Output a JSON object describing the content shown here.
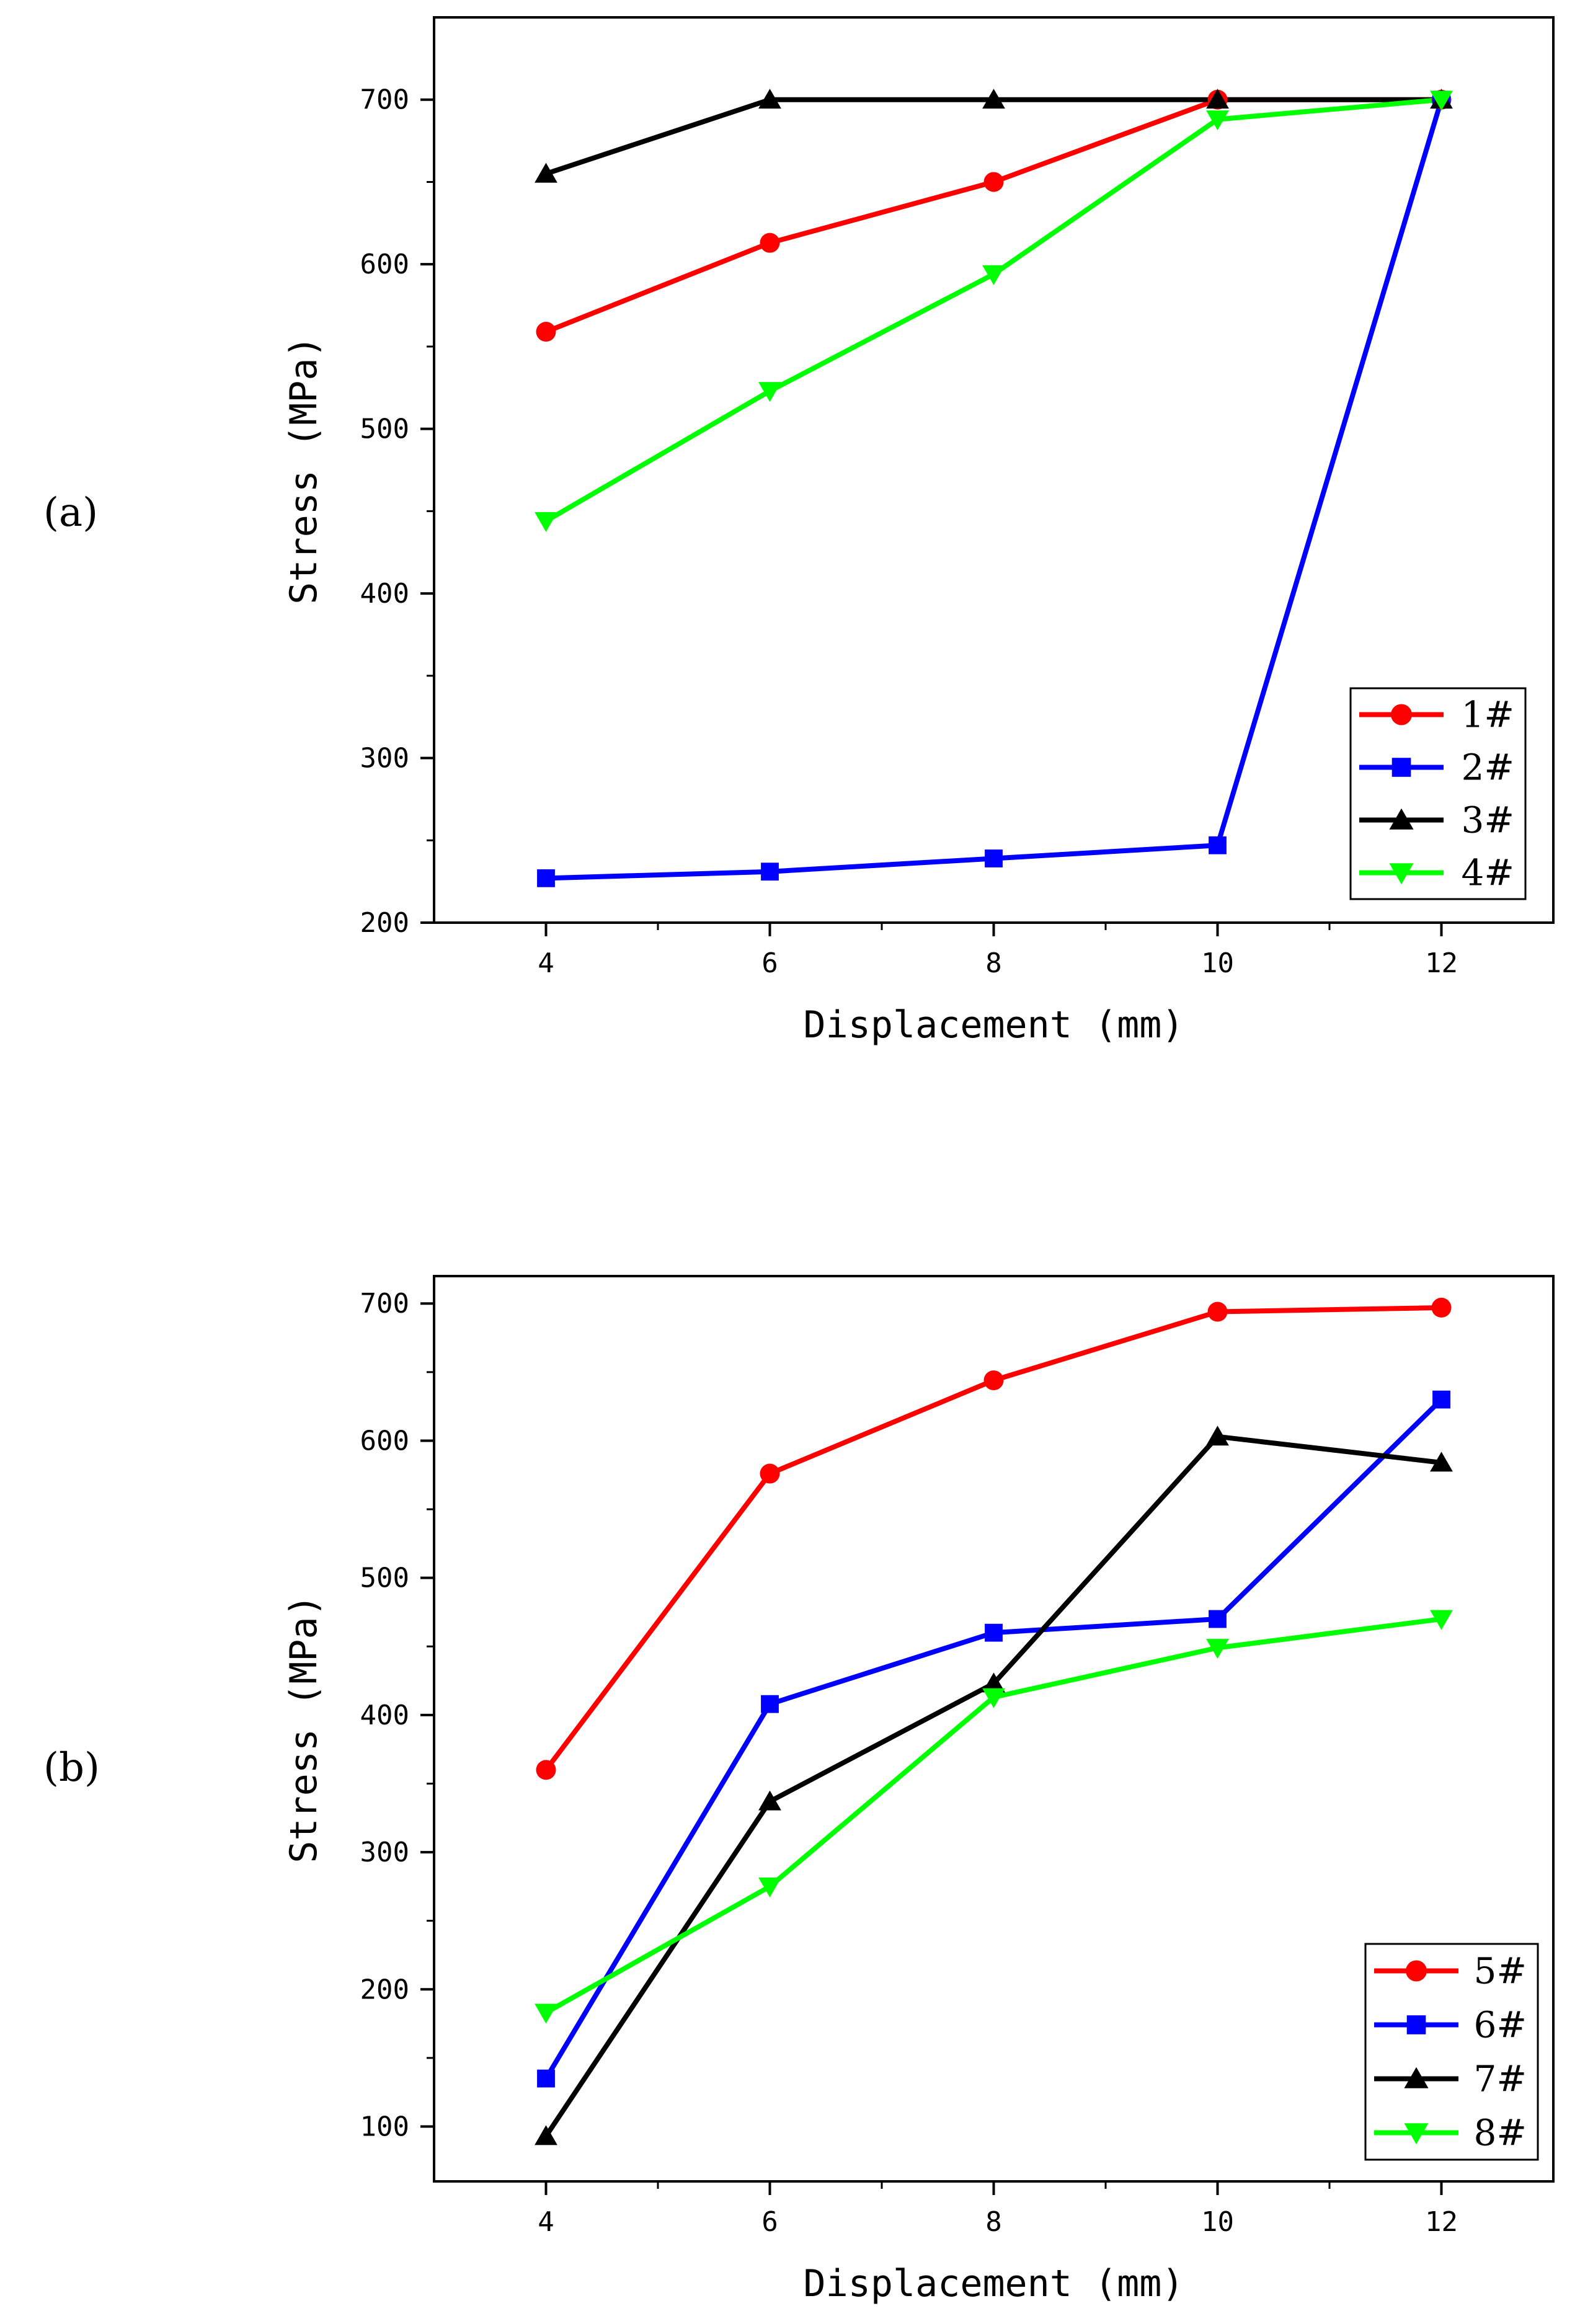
{
  "chart_data": [
    {
      "panel_label": "(a)",
      "type": "line",
      "xlabel": "Displacement (mm)",
      "ylabel": "Stress (MPa)",
      "xlim": [
        3,
        13
      ],
      "ylim": [
        200,
        750
      ],
      "x_ticks": [
        4,
        6,
        8,
        10,
        12
      ],
      "y_ticks": [
        200,
        300,
        400,
        500,
        600,
        700
      ],
      "legend_position": "bottom-right",
      "series": [
        {
          "name": "1#",
          "color": "#ff0000",
          "marker": "circle",
          "x": [
            4,
            6,
            8,
            10,
            12
          ],
          "values": [
            559,
            613,
            650,
            700,
            700
          ]
        },
        {
          "name": "2#",
          "color": "#0000ff",
          "marker": "square",
          "x": [
            4,
            6,
            8,
            10,
            12
          ],
          "values": [
            227,
            231,
            239,
            247,
            700
          ]
        },
        {
          "name": "3#",
          "color": "#000000",
          "marker": "triangle-up",
          "x": [
            4,
            6,
            8,
            10,
            12
          ],
          "values": [
            655,
            700,
            700,
            700,
            700
          ]
        },
        {
          "name": "4#",
          "color": "#00ff00",
          "marker": "triangle-down",
          "x": [
            4,
            6,
            8,
            10,
            12
          ],
          "values": [
            444,
            523,
            594,
            688,
            700
          ]
        }
      ]
    },
    {
      "panel_label": "(b)",
      "type": "line",
      "xlabel": "Displacement (mm)",
      "ylabel": "Stress (MPa)",
      "xlim": [
        3,
        13
      ],
      "ylim": [
        60,
        720
      ],
      "x_ticks": [
        4,
        6,
        8,
        10,
        12
      ],
      "y_ticks": [
        100,
        200,
        300,
        400,
        500,
        600,
        700
      ],
      "legend_position": "bottom-right",
      "series": [
        {
          "name": "5#",
          "color": "#ff0000",
          "marker": "circle",
          "x": [
            4,
            6,
            8,
            10,
            12
          ],
          "values": [
            360,
            576,
            644,
            694,
            697
          ]
        },
        {
          "name": "6#",
          "color": "#0000ff",
          "marker": "square",
          "x": [
            4,
            6,
            8,
            10,
            12
          ],
          "values": [
            135,
            408,
            460,
            470,
            630
          ]
        },
        {
          "name": "7#",
          "color": "#000000",
          "marker": "triangle-up",
          "x": [
            4,
            6,
            8,
            10,
            12
          ],
          "values": [
            93,
            337,
            423,
            603,
            584
          ]
        },
        {
          "name": "8#",
          "color": "#00ff00",
          "marker": "triangle-down",
          "x": [
            4,
            6,
            8,
            10,
            12
          ],
          "values": [
            183,
            275,
            413,
            449,
            470
          ]
        }
      ]
    }
  ]
}
